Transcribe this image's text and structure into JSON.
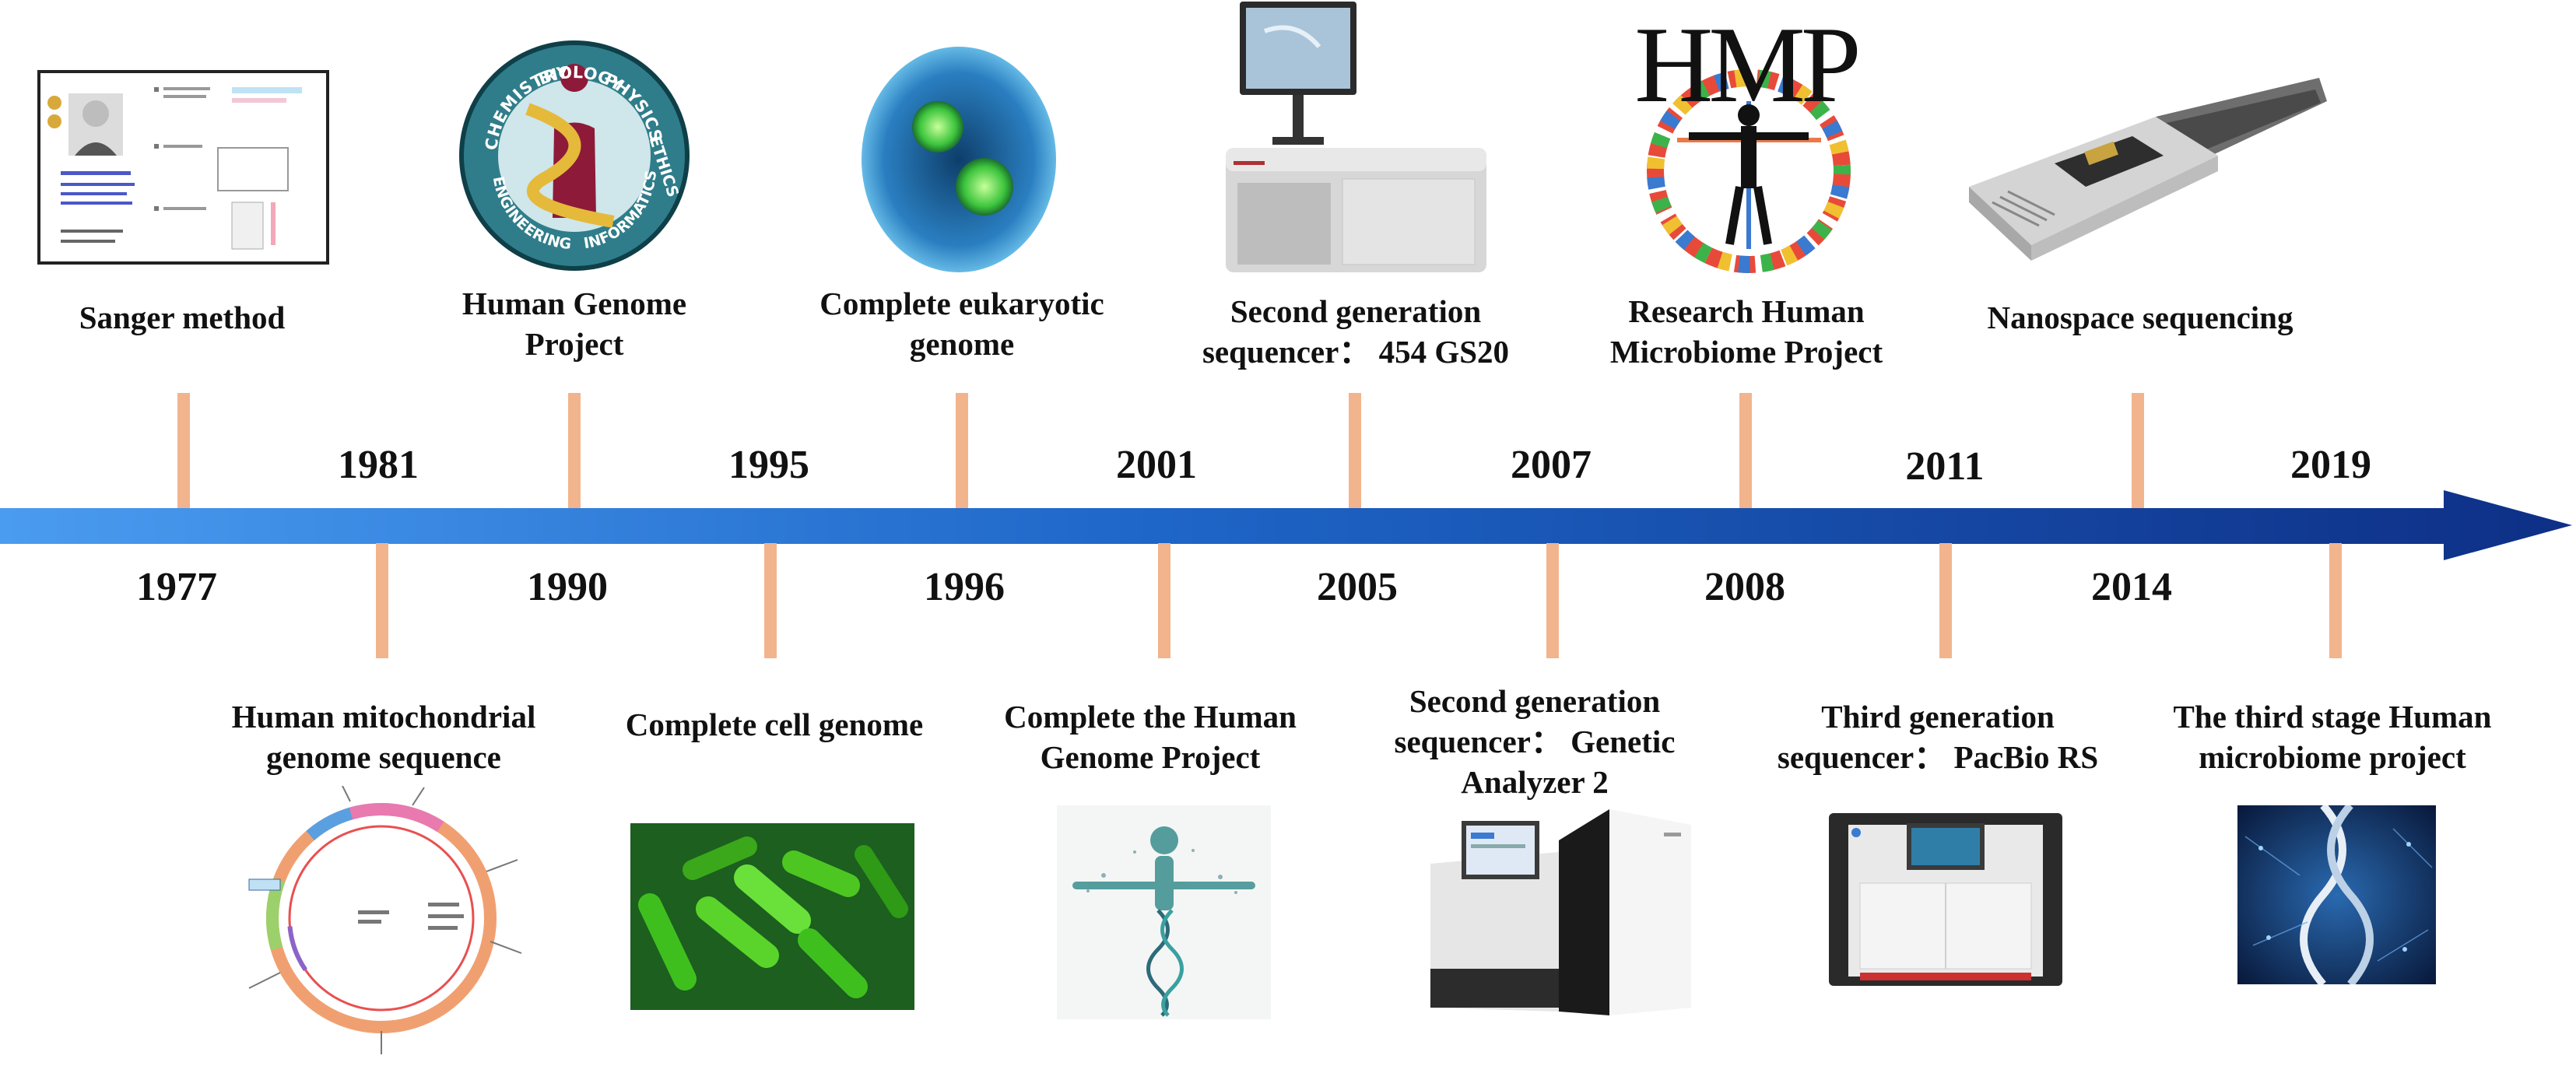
{
  "colors": {
    "arrow_start": "#4a9cf0",
    "arrow_mid": "#1e66c8",
    "arrow_end": "#0e2f86",
    "tick": "#f2b48d",
    "text": "#111111"
  },
  "top_events": [
    {
      "year": "1981",
      "lines": [
        "Sanger method"
      ],
      "icon": "sanger-portrait-icon"
    },
    {
      "year": "1995",
      "lines": [
        "Human Genome",
        "Project"
      ],
      "icon": "hgp-logo-icon",
      "logo_words": [
        "CHEMISTRY",
        "BIOLOGY",
        "PHYSICS",
        "ETHICS",
        "ENGINEERING",
        "INFORMATICS"
      ]
    },
    {
      "year": "2001",
      "lines": [
        "Complete eukaryotic",
        "genome"
      ],
      "icon": "eukaryotic-cell-icon"
    },
    {
      "year": "2007",
      "lines": [
        "Second generation",
        "sequencer： 454 GS20"
      ],
      "icon": "sequencer-454-icon"
    },
    {
      "year": "2011",
      "lines": [
        "Research Human",
        "Microbiome Project"
      ],
      "icon": "hmp-logo-icon",
      "logo_text": "HMP"
    },
    {
      "year": "2019",
      "lines": [
        "Nanospace sequencing"
      ],
      "icon": "nanopore-device-icon"
    }
  ],
  "bottom_events": [
    {
      "year": "1977",
      "lines": [
        "Human mitochondrial",
        "genome sequence"
      ],
      "icon": "mito-genome-map-icon"
    },
    {
      "year": "1990",
      "lines": [
        "Complete cell genome"
      ],
      "icon": "bacteria-icon"
    },
    {
      "year": "1996",
      "lines": [
        "Complete the Human",
        "Genome Project"
      ],
      "icon": "dna-human-figure-icon"
    },
    {
      "year": "2005",
      "lines": [
        "Second generation",
        "sequencer： Genetic",
        "Analyzer 2"
      ],
      "icon": "genome-analyzer-icon"
    },
    {
      "year": "2008",
      "lines": [
        "Third generation",
        "sequencer： PacBio RS"
      ],
      "icon": "pacbio-sequencer-icon"
    },
    {
      "year": "2014",
      "lines": [
        "The third stage Human",
        "microbiome project"
      ],
      "icon": "dna-helix-icon"
    }
  ]
}
